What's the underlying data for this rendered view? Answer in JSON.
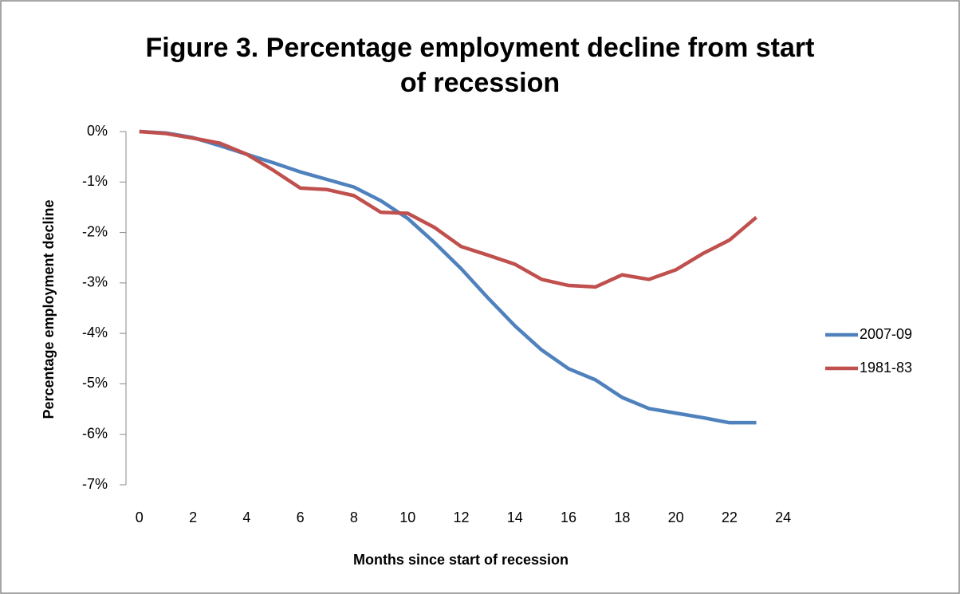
{
  "chart_data": {
    "type": "line",
    "title": "Figure 3.  Percentage employment decline from start\nof recession",
    "x_label": "Months since start of recession",
    "y_label": "Percentage employment decline",
    "x": [
      0,
      1,
      2,
      3,
      4,
      5,
      6,
      7,
      8,
      9,
      10,
      11,
      12,
      13,
      14,
      15,
      16,
      17,
      18,
      19,
      20,
      21,
      22,
      23
    ],
    "series": [
      {
        "name": "2007-09",
        "color": "#4f81bd",
        "values": [
          0,
          -0.03,
          -0.12,
          -0.28,
          -0.45,
          -0.62,
          -0.8,
          -0.95,
          -1.1,
          -1.37,
          -1.72,
          -2.2,
          -2.72,
          -3.3,
          -3.85,
          -4.33,
          -4.7,
          -4.92,
          -5.27,
          -5.49,
          -5.58,
          -5.67,
          -5.77,
          -5.77
        ]
      },
      {
        "name": "1981-83",
        "color": "#c0504d",
        "values": [
          0,
          -0.04,
          -0.13,
          -0.23,
          -0.45,
          -0.77,
          -1.12,
          -1.15,
          -1.27,
          -1.6,
          -1.62,
          -1.9,
          -2.28,
          -2.45,
          -2.63,
          -2.93,
          -3.05,
          -3.08,
          -2.84,
          -2.93,
          -2.74,
          -2.42,
          -2.15,
          -1.7
        ]
      }
    ],
    "xlim": [
      -0.5,
      24.5
    ],
    "xticks": [
      0,
      2,
      4,
      6,
      8,
      10,
      12,
      14,
      16,
      18,
      20,
      22,
      24
    ],
    "ylim": [
      -7,
      0
    ],
    "yticks": [
      {
        "value": 0,
        "label": "0%"
      },
      {
        "value": -1,
        "label": "-1%"
      },
      {
        "value": -2,
        "label": "-2%"
      },
      {
        "value": -3,
        "label": "-3%"
      },
      {
        "value": -4,
        "label": "-4%"
      },
      {
        "value": -5,
        "label": "-5%"
      },
      {
        "value": -6,
        "label": "-6%"
      },
      {
        "value": -7,
        "label": "-7%"
      }
    ],
    "legend": "right"
  }
}
